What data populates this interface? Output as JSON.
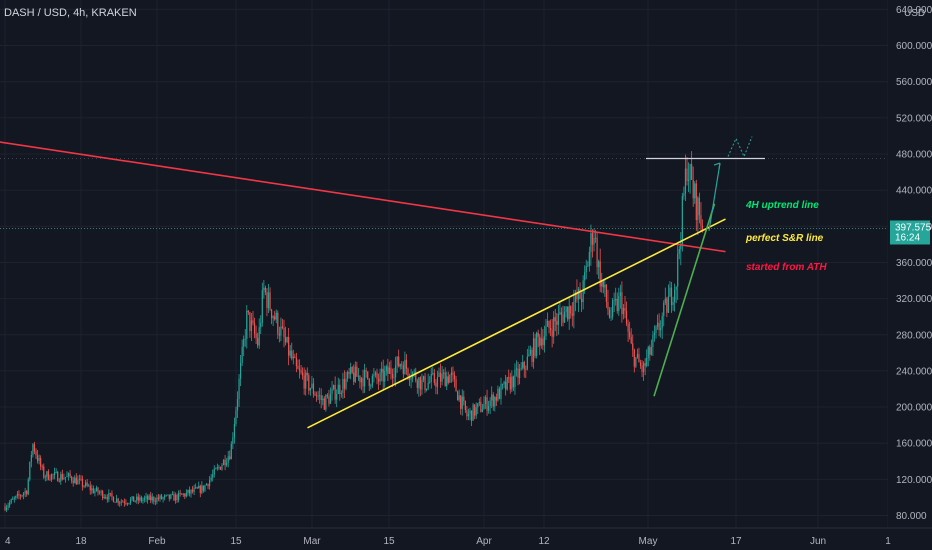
{
  "header": {
    "symbol_title": "DASH / USD, 4h, KRAKEN",
    "currency": "USD"
  },
  "chart_data": {
    "type": "candlestick",
    "title": "DASH / USD, 4h, KRAKEN",
    "y_axis": {
      "ticks": [
        "80.000",
        "120.000",
        "160.000",
        "200.000",
        "240.000",
        "280.000",
        "320.000",
        "360.000",
        "400.000",
        "440.000",
        "480.000",
        "520.000",
        "560.000",
        "600.000",
        "640.000"
      ],
      "range": [
        76,
        648
      ]
    },
    "x_axis": {
      "ticks": [
        "4",
        "18",
        "Feb",
        "15",
        "Mar",
        "15",
        "Apr",
        "12",
        "May",
        "17",
        "Jun",
        "1"
      ]
    },
    "last_price": "397.575",
    "countdown": "16:24",
    "price_path": [
      [
        "Jan 4",
        90
      ],
      [
        "Jan 8",
        108
      ],
      [
        "Jan 9",
        160
      ],
      [
        "Jan 11",
        125
      ],
      [
        "Jan 16",
        122
      ],
      [
        "Jan 20",
        108
      ],
      [
        "Jan 25",
        96
      ],
      [
        "Jan 30",
        98
      ],
      [
        "Feb 4",
        100
      ],
      [
        "Feb 9",
        110
      ],
      [
        "Feb 14",
        150
      ],
      [
        "Feb 17",
        300
      ],
      [
        "Feb 19",
        270
      ],
      [
        "Feb 20",
        330
      ],
      [
        "Feb 23",
        285
      ],
      [
        "Feb 26",
        240
      ],
      [
        "Mar 3",
        205
      ],
      [
        "Mar 8",
        235
      ],
      [
        "Mar 13",
        230
      ],
      [
        "Mar 17",
        250
      ],
      [
        "Mar 21",
        225
      ],
      [
        "Mar 26",
        235
      ],
      [
        "Mar 29",
        190
      ],
      [
        "Apr 3",
        210
      ],
      [
        "Apr 8",
        240
      ],
      [
        "Apr 11",
        275
      ],
      [
        "Apr 15",
        300
      ],
      [
        "Apr 19",
        325
      ],
      [
        "Apr 21",
        400
      ],
      [
        "Apr 22",
        350
      ],
      [
        "Apr 24",
        300
      ],
      [
        "Apr 26",
        320
      ],
      [
        "Apr 28",
        260
      ],
      [
        "Apr 30",
        240
      ],
      [
        "May 3",
        290
      ],
      [
        "May 6",
        340
      ],
      [
        "May 8",
        470
      ],
      [
        "May 9",
        440
      ],
      [
        "May 11",
        398
      ]
    ],
    "trend_lines": [
      {
        "name": "started from ATH",
        "color": "#f23645",
        "from": [
          "Dec 18",
          508
        ],
        "to": [
          "May 15",
          372
        ]
      },
      {
        "name": "perfect S&R line",
        "color": "#ffeb3b",
        "from": [
          "Feb 28",
          177
        ],
        "to": [
          "May 15",
          408
        ]
      },
      {
        "name": "4H uptrend line",
        "color": "#4caf50",
        "from": [
          "May 2",
          212
        ],
        "to": [
          "May 13",
          425
        ]
      }
    ],
    "resistance_level": 475,
    "projection_arrow": {
      "from": [
        "May 12",
        395
      ],
      "to": [
        "May 14",
        470
      ]
    },
    "annotations": [
      {
        "text": "4H uptrend line",
        "color": "#00e676"
      },
      {
        "text": "perfect S&R line",
        "color": "#ffeb3b"
      },
      {
        "text": "started from ATH",
        "color": "#ff1744"
      }
    ]
  },
  "colors": {
    "background": "#131722",
    "up": "#26a69a",
    "down": "#ef5350",
    "grid": "#1e222d"
  }
}
